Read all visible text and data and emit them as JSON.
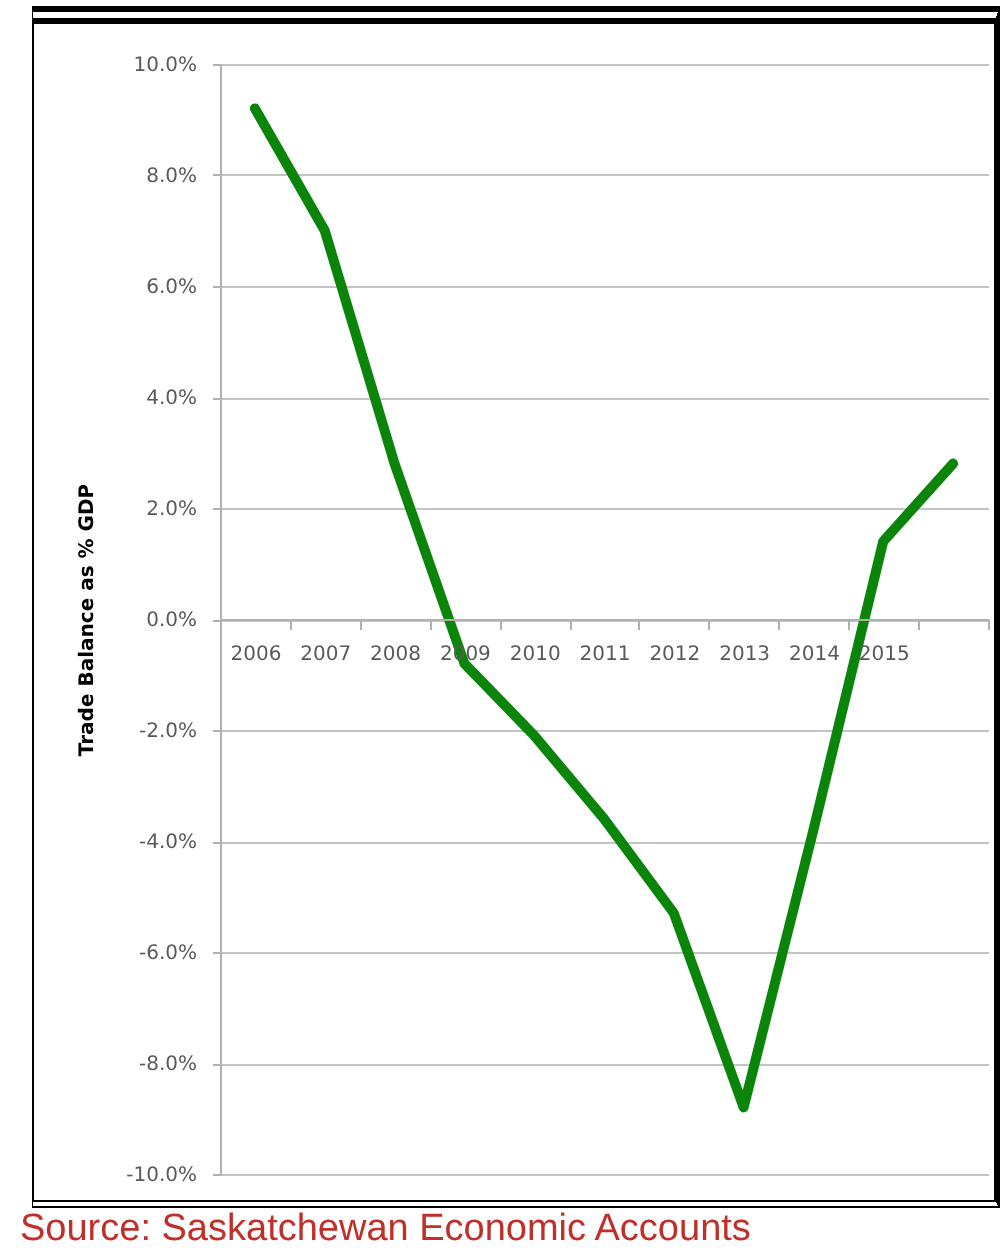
{
  "chart_data": {
    "type": "line",
    "ylabel": "Trade Balance as % GDP",
    "annotations": [
      "Source: Saskatchewan Economic Accounts"
    ],
    "categories": [
      "2006",
      "2007",
      "2008",
      "2009",
      "2010",
      "2011",
      "2012",
      "2013",
      "2014",
      "2015",
      null
    ],
    "series": [
      {
        "color": "#0a850a",
        "values": [
          9.2,
          7.0,
          2.8,
          -0.8,
          -2.1,
          -3.6,
          -5.3,
          -8.8,
          -3.8,
          1.4,
          2.8
        ]
      }
    ],
    "ylim": [
      -10,
      10
    ],
    "yticks": [
      {
        "value": -10,
        "label": "-10.0%"
      },
      {
        "value": -8,
        "label": "-8.0%"
      },
      {
        "value": -6,
        "label": "-6.0%"
      },
      {
        "value": -4,
        "label": "-4.0%"
      },
      {
        "value": -2,
        "label": "-2.0%"
      },
      {
        "value": 0,
        "label": "0.0%"
      },
      {
        "value": 2,
        "label": "2.0%"
      },
      {
        "value": 4,
        "label": "4.0%"
      },
      {
        "value": 6,
        "label": "6.0%"
      },
      {
        "value": 8,
        "label": "8.0%"
      },
      {
        "value": 10,
        "label": "10.0%"
      }
    ],
    "grid": "y"
  }
}
